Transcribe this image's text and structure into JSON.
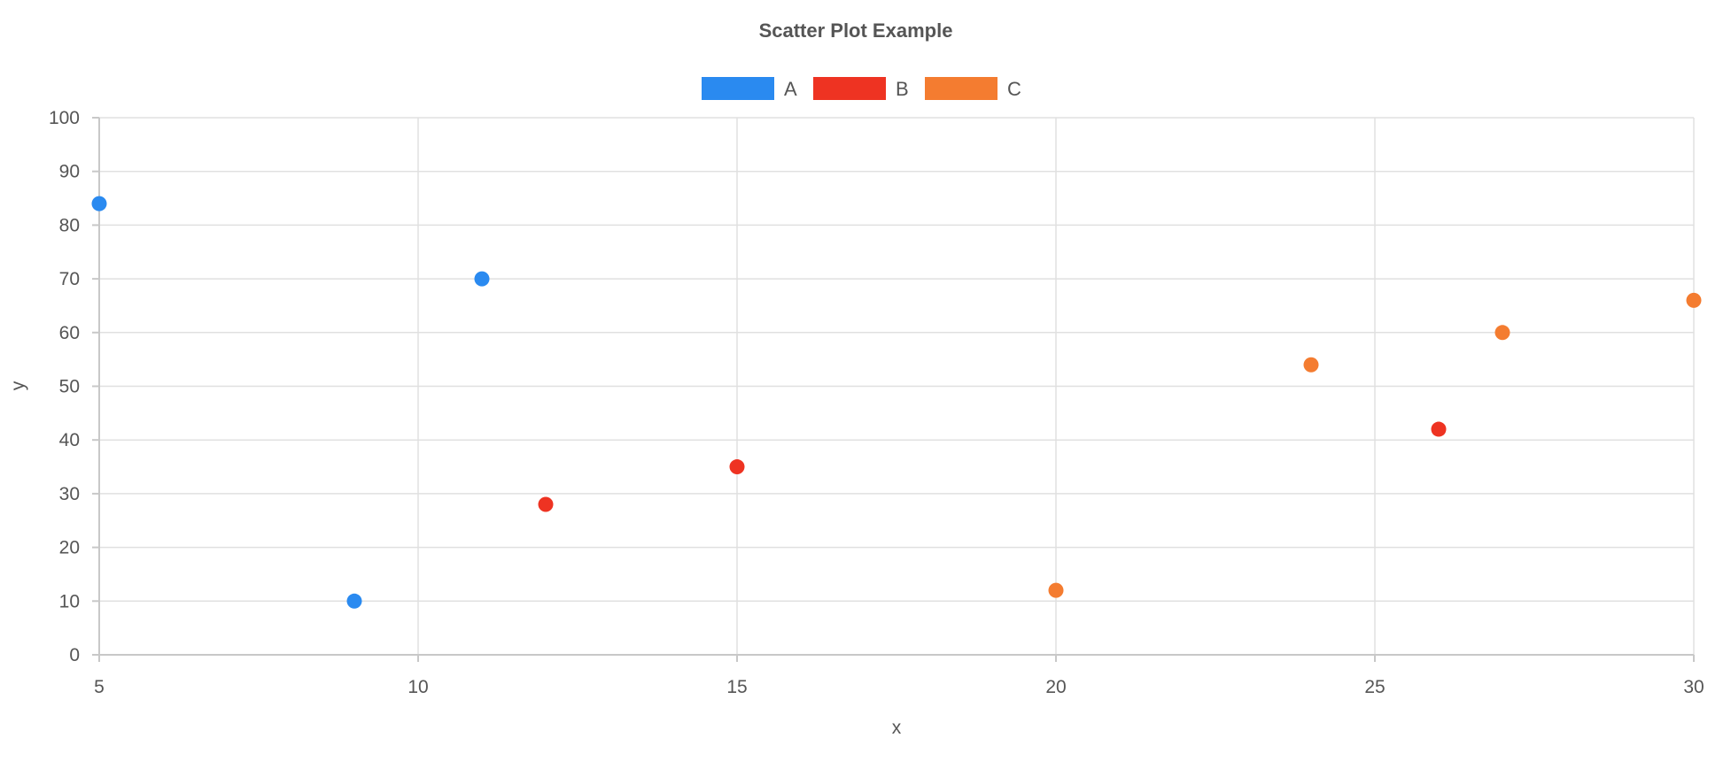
{
  "chart_data": {
    "type": "scatter",
    "title": "Scatter Plot Example",
    "xlabel": "x",
    "ylabel": "y",
    "xlim": [
      5,
      30
    ],
    "ylim": [
      0,
      100
    ],
    "x_ticks": [
      5,
      10,
      15,
      20,
      25,
      30
    ],
    "y_ticks": [
      0,
      10,
      20,
      30,
      40,
      50,
      60,
      70,
      80,
      90,
      100
    ],
    "grid": true,
    "legend_position": "top-center",
    "series": [
      {
        "name": "A",
        "color": "#2a8af0",
        "points": [
          {
            "x": 5,
            "y": 84
          },
          {
            "x": 9,
            "y": 10
          },
          {
            "x": 11,
            "y": 70
          }
        ]
      },
      {
        "name": "B",
        "color": "#ee3322",
        "points": [
          {
            "x": 12,
            "y": 28
          },
          {
            "x": 15,
            "y": 35
          },
          {
            "x": 26,
            "y": 42
          }
        ]
      },
      {
        "name": "C",
        "color": "#f47c30",
        "points": [
          {
            "x": 20,
            "y": 12
          },
          {
            "x": 24,
            "y": 54
          },
          {
            "x": 27,
            "y": 60
          },
          {
            "x": 30,
            "y": 66
          }
        ]
      }
    ]
  }
}
